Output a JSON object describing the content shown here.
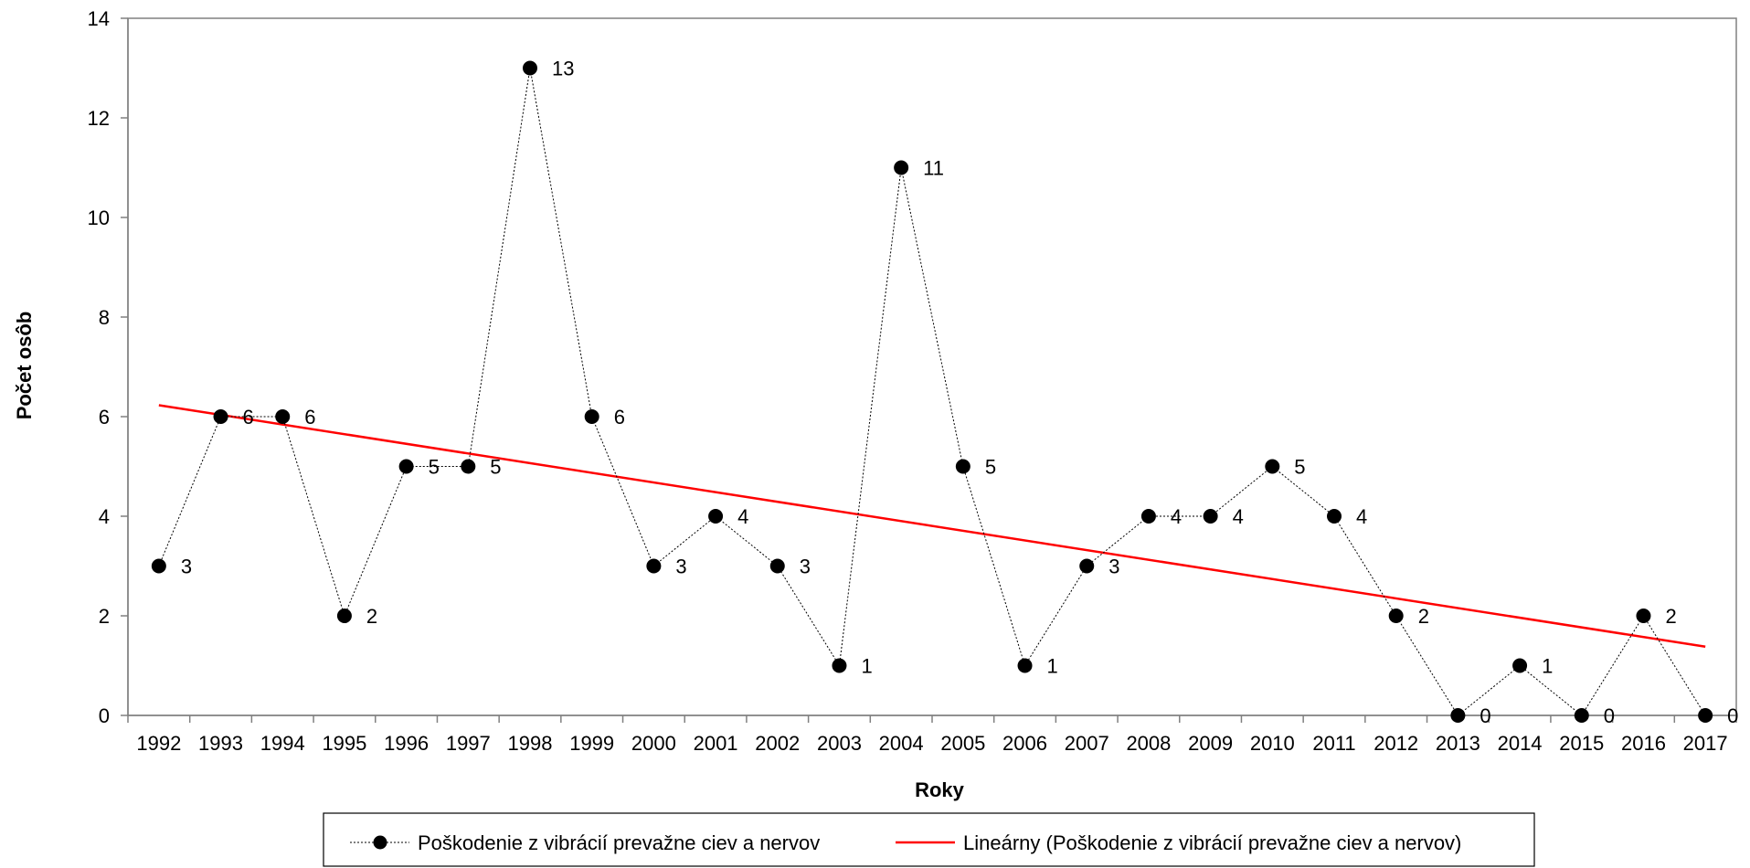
{
  "chart_data": {
    "type": "line",
    "title": "",
    "xlabel": "Roky",
    "ylabel": "Počet osôb",
    "ylim": [
      0,
      14
    ],
    "yticks": [
      0,
      2,
      4,
      6,
      8,
      10,
      12,
      14
    ],
    "categories": [
      "1992",
      "1993",
      "1994",
      "1995",
      "1996",
      "1997",
      "1998",
      "1999",
      "2000",
      "2001",
      "2002",
      "2003",
      "2004",
      "2005",
      "2006",
      "2007",
      "2008",
      "2009",
      "2010",
      "2011",
      "2012",
      "2013",
      "2014",
      "2015",
      "2016",
      "2017"
    ],
    "series": [
      {
        "name": "Poškodenie z vibrácií prevažne ciev a nervov",
        "values": [
          3,
          6,
          6,
          2,
          5,
          5,
          13,
          6,
          3,
          4,
          3,
          1,
          11,
          5,
          1,
          3,
          4,
          4,
          5,
          4,
          2,
          0,
          1,
          0,
          2,
          0
        ],
        "color": "#000000",
        "marker": "circle",
        "line": "dotted"
      }
    ],
    "trendline": {
      "name": "Lineárny (Poškodenie z vibrácií prevažne ciev a nervov)",
      "type": "linear",
      "start": 6.23,
      "end": 1.38,
      "color": "#ff0000"
    },
    "grid": false,
    "legend": "bottom"
  }
}
